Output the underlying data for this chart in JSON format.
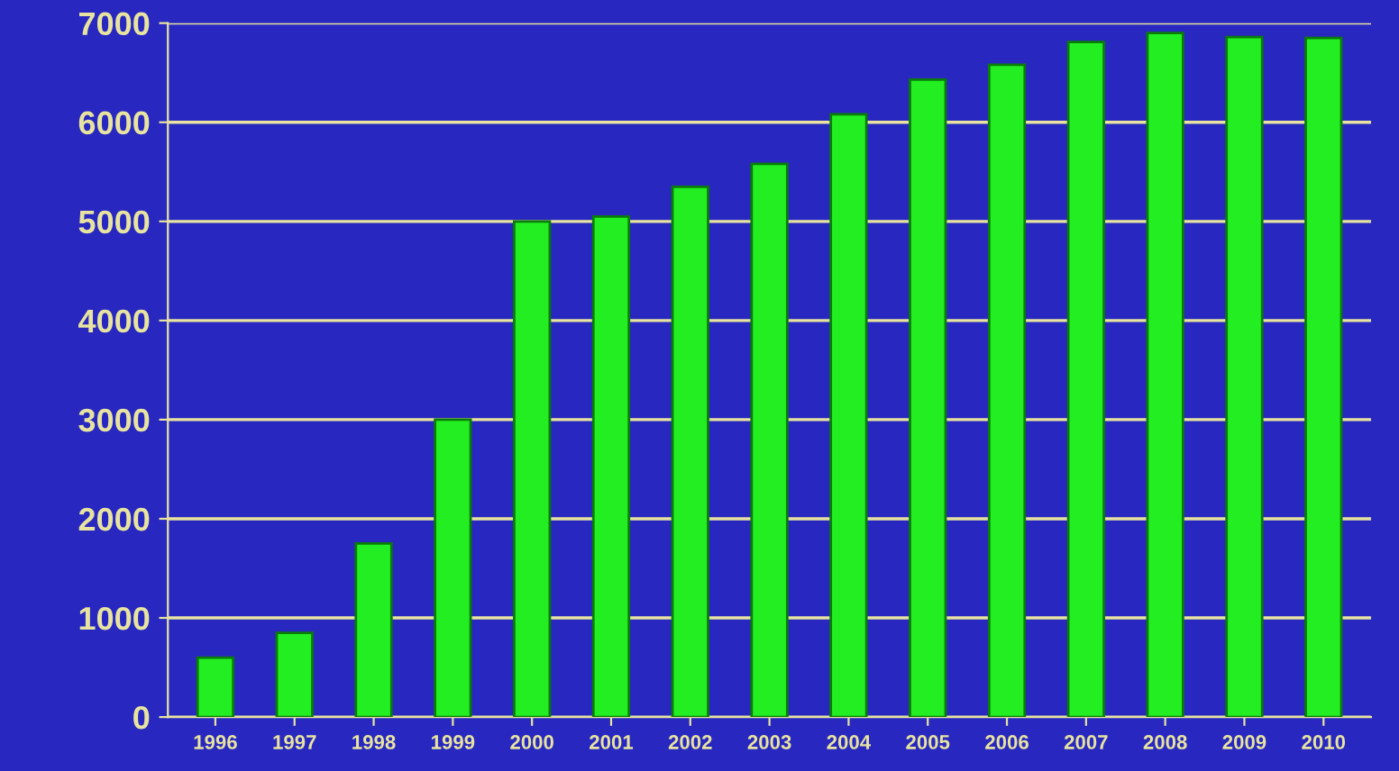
{
  "chart_data": {
    "type": "bar",
    "categories": [
      "1996",
      "1997",
      "1998",
      "1999",
      "2000",
      "2001",
      "2002",
      "2003",
      "2004",
      "2005",
      "2006",
      "2007",
      "2008",
      "2009",
      "2010"
    ],
    "values": [
      600,
      850,
      1750,
      3000,
      5000,
      5050,
      5350,
      5580,
      6080,
      6430,
      6580,
      6810,
      6900,
      6860,
      6850
    ],
    "color": "#22ee22",
    "ylim": [
      0,
      7000
    ],
    "yticks": [
      0,
      1000,
      2000,
      3000,
      4000,
      5000,
      6000,
      7000
    ],
    "grid": "y"
  }
}
